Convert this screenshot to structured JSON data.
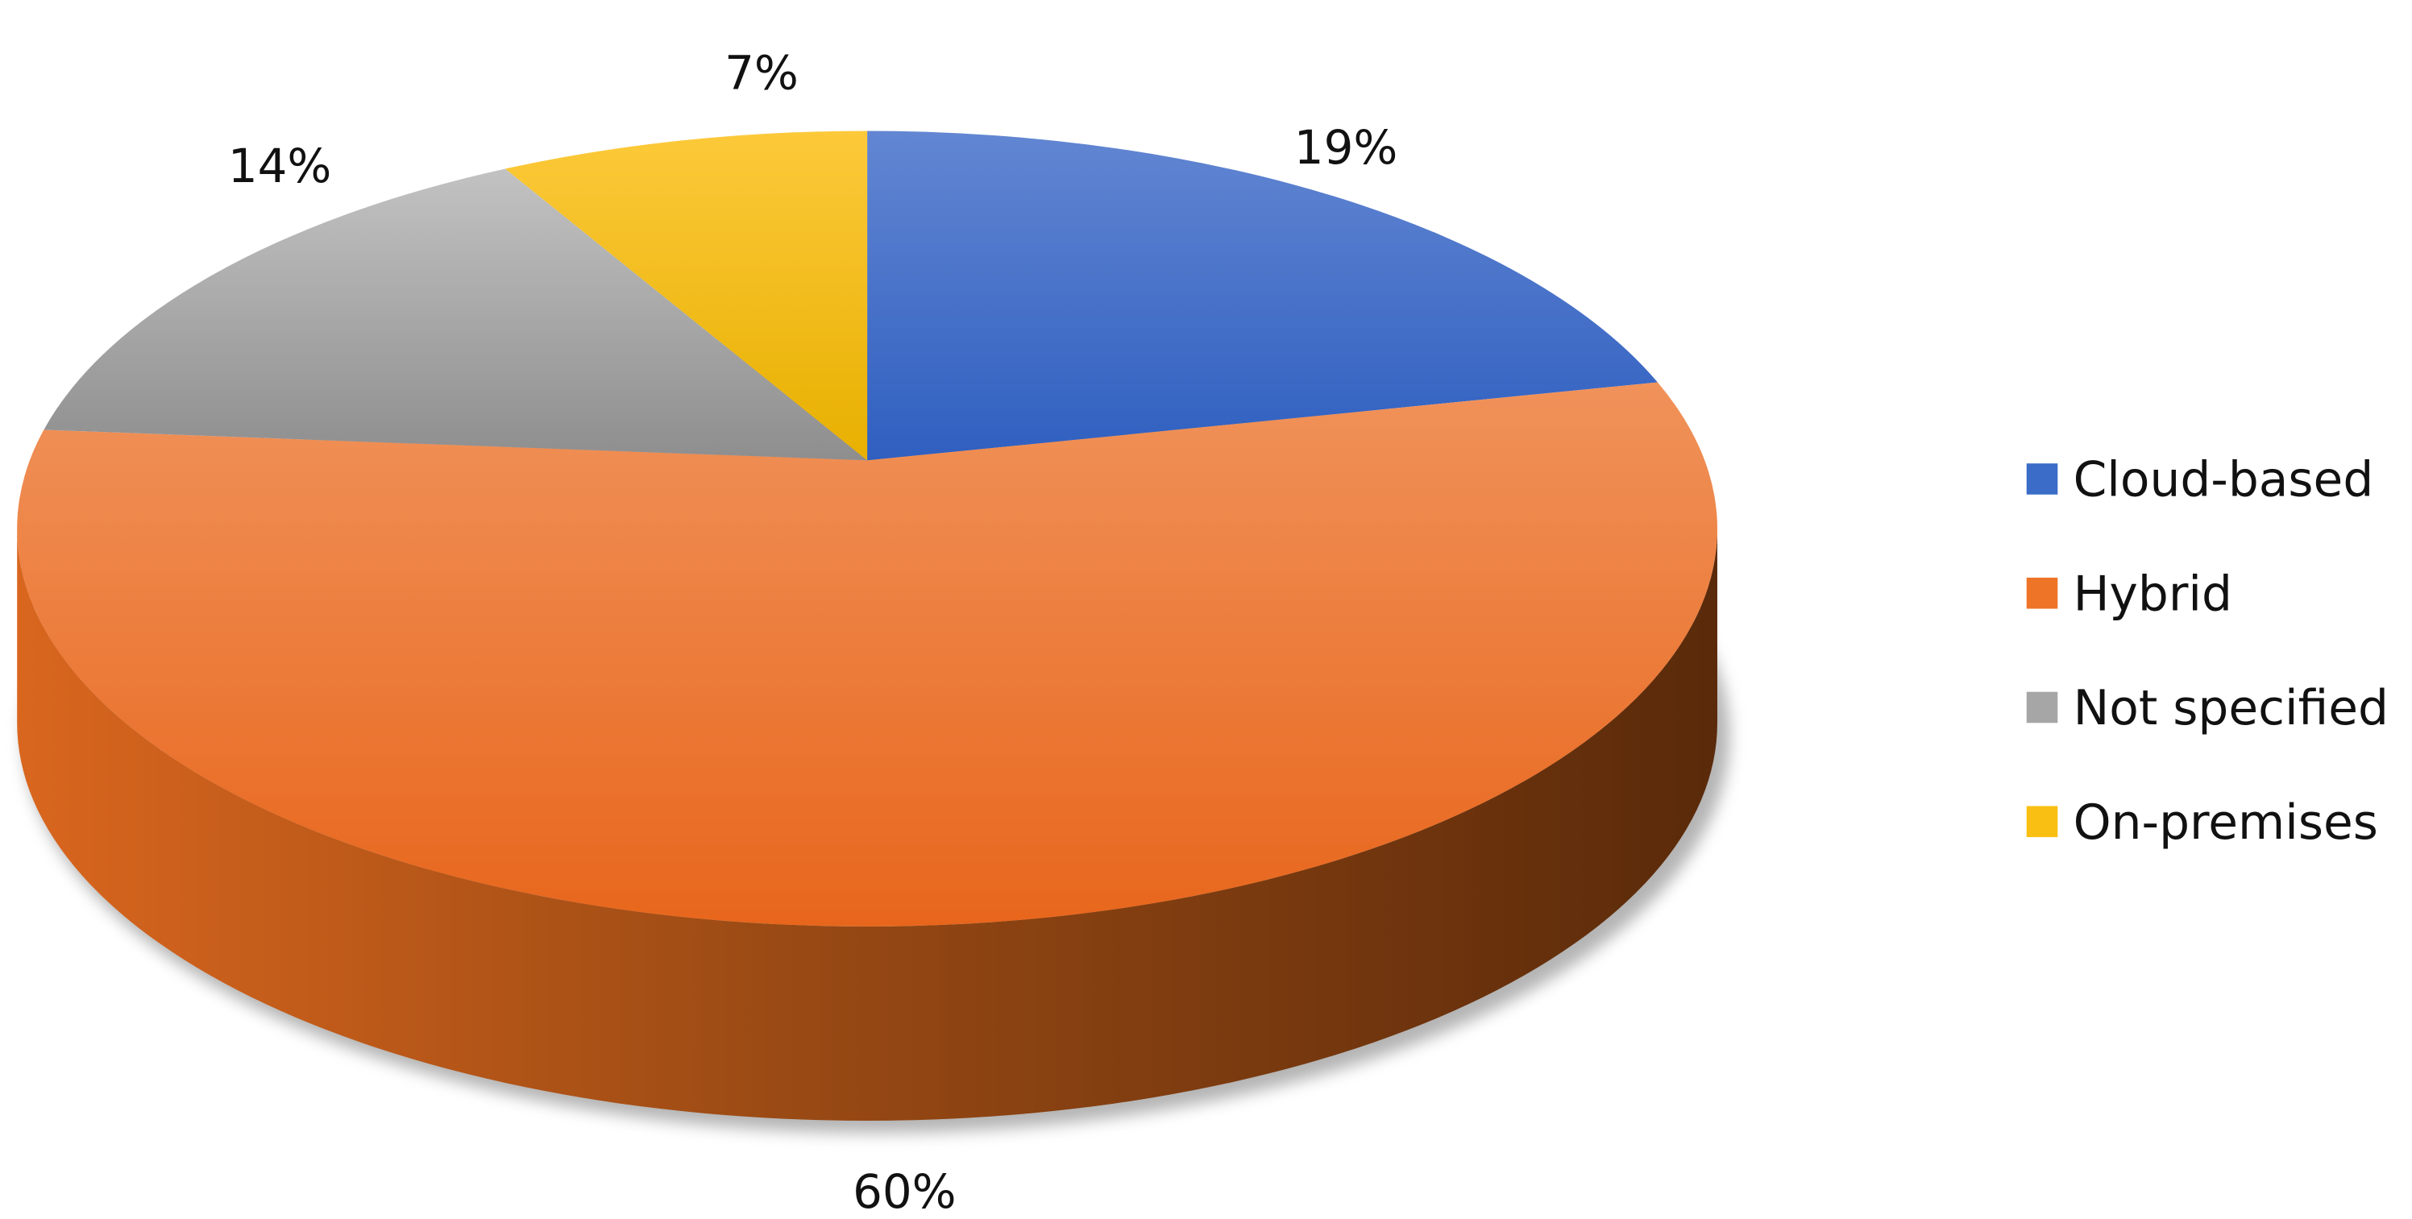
{
  "chart_data": {
    "type": "pie",
    "style": "3d",
    "title": "",
    "start_angle": "12 o'clock, clockwise",
    "slices": [
      {
        "label": "Cloud-based",
        "value": 19,
        "data_label": "19%",
        "color": "#3A6CC8"
      },
      {
        "label": "Hybrid",
        "value": 60,
        "data_label": "60%",
        "color": "#EE7428"
      },
      {
        "label": "Not specified",
        "value": 14,
        "data_label": "14%",
        "color": "#A6A6A6"
      },
      {
        "label": "On-premises",
        "value": 7,
        "data_label": "7%",
        "color": "#F9C013"
      }
    ],
    "legend": {
      "placement": "right",
      "entries": [
        "Cloud-based",
        "Hybrid",
        "Not specified",
        "On-premises"
      ]
    }
  }
}
